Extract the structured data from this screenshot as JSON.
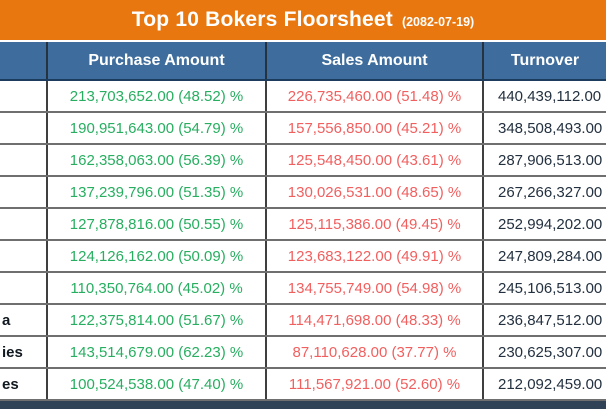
{
  "title": {
    "text": "Top 10 Bokers Floorsheet",
    "date": "(2082-07-19)"
  },
  "columns": {
    "broker": "",
    "purchase": "Purchase Amount",
    "sales": "Sales Amount",
    "turnover": "Turnover"
  },
  "colors": {
    "title_bar": "#e8770f",
    "header_bg": "#3e6d9d",
    "purchase_text": "#27ae60",
    "sales_text": "#f15f5f",
    "turnover_text": "#23303f",
    "bottom_bar": "#2f4256"
  },
  "rows": [
    {
      "broker": "",
      "purchase": "213,703,652.00 (48.52) %",
      "sales": "226,735,460.00 (51.48) %",
      "turnover": "440,439,112.00"
    },
    {
      "broker": "",
      "purchase": "190,951,643.00 (54.79) %",
      "sales": "157,556,850.00 (45.21) %",
      "turnover": "348,508,493.00"
    },
    {
      "broker": "",
      "purchase": "162,358,063.00 (56.39) %",
      "sales": "125,548,450.00 (43.61) %",
      "turnover": "287,906,513.00"
    },
    {
      "broker": "",
      "purchase": "137,239,796.00 (51.35) %",
      "sales": "130,026,531.00 (48.65) %",
      "turnover": "267,266,327.00"
    },
    {
      "broker": "",
      "purchase": "127,878,816.00 (50.55) %",
      "sales": "125,115,386.00 (49.45) %",
      "turnover": "252,994,202.00"
    },
    {
      "broker": "",
      "purchase": "124,126,162.00 (50.09) %",
      "sales": "123,683,122.00 (49.91) %",
      "turnover": "247,809,284.00"
    },
    {
      "broker": "",
      "purchase": "110,350,764.00 (45.02) %",
      "sales": "134,755,749.00 (54.98) %",
      "turnover": "245,106,513.00"
    },
    {
      "broker": "a",
      "purchase": "122,375,814.00 (51.67) %",
      "sales": "114,471,698.00 (48.33) %",
      "turnover": "236,847,512.00"
    },
    {
      "broker": "ies",
      "purchase": "143,514,679.00 (62.23) %",
      "sales": "87,110,628.00 (37.77) %",
      "turnover": "230,625,307.00"
    },
    {
      "broker": "es",
      "purchase": "100,524,538.00 (47.40) %",
      "sales": "111,567,921.00 (52.60) %",
      "turnover": "212,092,459.00"
    }
  ]
}
